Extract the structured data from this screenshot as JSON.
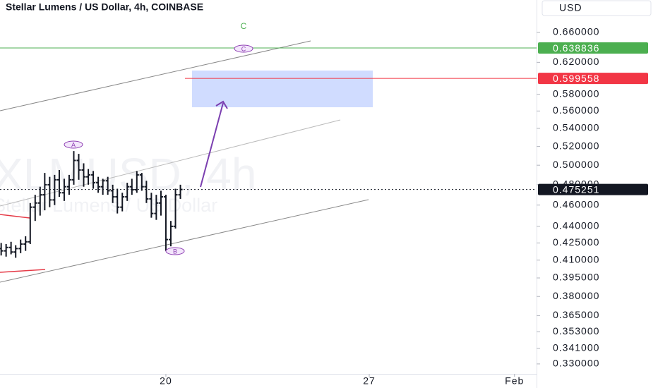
{
  "chart_data": {
    "type": "ohlc",
    "title": "Stellar Lumens / US Dollar, 4h, COINBASE",
    "watermark": "XLMUSD, 4h",
    "watermark_subtitle": "Stellar Lumens / US Dollar",
    "currency": "USD",
    "log_scale": true,
    "color": "#131722",
    "x": [
      14.33,
      14.5,
      14.67,
      14.83,
      15.0,
      15.17,
      15.33,
      15.5,
      15.67,
      15.83,
      16.0,
      16.17,
      16.33,
      16.5,
      16.67,
      16.83,
      17.0,
      17.17,
      17.33,
      17.5,
      17.67,
      17.83,
      18.0,
      18.17,
      18.33,
      18.5,
      18.67,
      18.83,
      19.0,
      19.17,
      19.33,
      19.5,
      19.67,
      19.83,
      20.0,
      20.17,
      20.33,
      20.5
    ],
    "open": [
      0.42,
      0.418,
      0.421,
      0.417,
      0.42,
      0.424,
      0.426,
      0.458,
      0.462,
      0.47,
      0.48,
      0.465,
      0.485,
      0.472,
      0.478,
      0.485,
      0.505,
      0.495,
      0.488,
      0.49,
      0.482,
      0.478,
      0.484,
      0.474,
      0.468,
      0.458,
      0.468,
      0.478,
      0.475,
      0.49,
      0.478,
      0.466,
      0.452,
      0.462,
      0.468,
      0.428,
      0.44,
      0.47
    ],
    "high": [
      0.425,
      0.424,
      0.426,
      0.423,
      0.428,
      0.431,
      0.462,
      0.47,
      0.478,
      0.492,
      0.488,
      0.49,
      0.495,
      0.486,
      0.49,
      0.515,
      0.512,
      0.502,
      0.496,
      0.494,
      0.488,
      0.486,
      0.488,
      0.48,
      0.476,
      0.472,
      0.482,
      0.486,
      0.494,
      0.492,
      0.484,
      0.472,
      0.47,
      0.474,
      0.47,
      0.445,
      0.476,
      0.48
    ],
    "low": [
      0.414,
      0.413,
      0.415,
      0.412,
      0.416,
      0.418,
      0.424,
      0.445,
      0.45,
      0.455,
      0.458,
      0.46,
      0.468,
      0.464,
      0.47,
      0.48,
      0.485,
      0.478,
      0.48,
      0.476,
      0.472,
      0.47,
      0.47,
      0.462,
      0.452,
      0.454,
      0.464,
      0.47,
      0.472,
      0.474,
      0.462,
      0.448,
      0.446,
      0.45,
      0.418,
      0.422,
      0.438,
      0.466
    ],
    "close": [
      0.418,
      0.421,
      0.417,
      0.42,
      0.424,
      0.426,
      0.458,
      0.462,
      0.47,
      0.48,
      0.465,
      0.485,
      0.472,
      0.478,
      0.485,
      0.505,
      0.495,
      0.488,
      0.49,
      0.482,
      0.478,
      0.484,
      0.474,
      0.468,
      0.458,
      0.468,
      0.478,
      0.475,
      0.49,
      0.478,
      0.466,
      0.452,
      0.462,
      0.468,
      0.428,
      0.44,
      0.47,
      0.475251
    ],
    "xlim": [
      14.29,
      32.76
    ],
    "xticks": [
      20,
      27,
      {
        "value": 32,
        "label": "Feb"
      }
    ],
    "ylim": [
      0.3232,
      0.7063
    ],
    "yticks": [
      {
        "value": 0.66,
        "label": "0.660000"
      },
      {
        "value": 0.62,
        "label": "0.620000"
      },
      {
        "value": 0.58,
        "label": "0.580000"
      },
      {
        "value": 0.56,
        "label": "0.560000"
      },
      {
        "value": 0.54,
        "label": "0.540000"
      },
      {
        "value": 0.52,
        "label": "0.520000"
      },
      {
        "value": 0.5,
        "label": "0.500000"
      },
      {
        "value": 0.48,
        "label": "0.480000"
      },
      {
        "value": 0.46,
        "label": "0.460000"
      },
      {
        "value": 0.44,
        "label": "0.440000"
      },
      {
        "value": 0.425,
        "label": "0.425000"
      },
      {
        "value": 0.41,
        "label": "0.410000"
      },
      {
        "value": 0.395,
        "label": "0.395000"
      },
      {
        "value": 0.38,
        "label": "0.380000"
      },
      {
        "value": 0.365,
        "label": "0.365000"
      },
      {
        "value": 0.353,
        "label": "0.353000"
      },
      {
        "value": 0.341,
        "label": "0.341000"
      },
      {
        "value": 0.33,
        "label": "0.330000"
      }
    ],
    "price_lines": [
      {
        "value": 0.638836,
        "color": "#4caf50",
        "style": "solid"
      },
      {
        "value": 0.599558,
        "color": "#f23645",
        "style": "solid"
      },
      {
        "value": 0.475251,
        "color": "#131722",
        "style": "dotted"
      }
    ],
    "annotations": {
      "wave_c_top": "C",
      "wave_c": "C",
      "wave_a": "A",
      "wave_b": "B"
    }
  }
}
